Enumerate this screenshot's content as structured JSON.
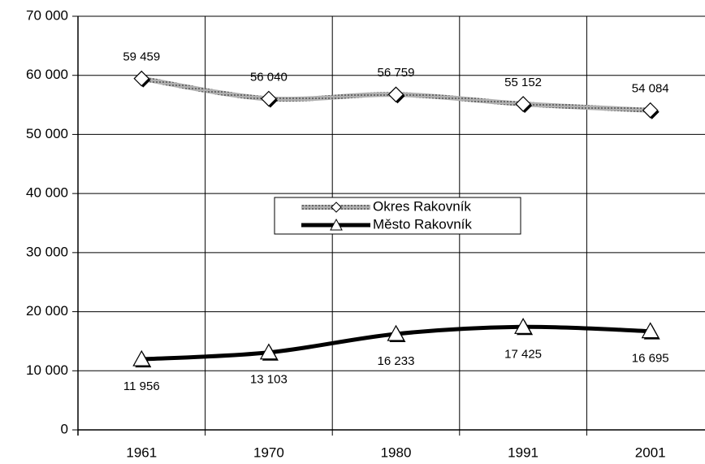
{
  "chart_data": {
    "type": "line",
    "categories": [
      "1961",
      "1970",
      "1980",
      "1991",
      "2001"
    ],
    "series": [
      {
        "name": "Okres Rakovník",
        "color": "#9a9a9a",
        "marker": "diamond",
        "values": [
          59459,
          56040,
          56759,
          55152,
          54084
        ],
        "value_labels": [
          "59 459",
          "56 040",
          "56 759",
          "55 152",
          "54 084"
        ]
      },
      {
        "name": "Město Rakovník",
        "color": "#000000",
        "marker": "triangle",
        "values": [
          11956,
          13103,
          16233,
          17425,
          16695
        ],
        "value_labels": [
          "11 956",
          "13 103",
          "16 233",
          "17 425",
          "16 695"
        ]
      }
    ],
    "ylim": [
      0,
      70000
    ],
    "yticks": [
      0,
      {
        "value": 10000,
        "label": "10 000"
      },
      {
        "value": 20000,
        "label": "20 000"
      },
      {
        "value": 30000,
        "label": "30 000"
      },
      {
        "value": 40000,
        "label": "40 000"
      },
      {
        "value": 50000,
        "label": "50 000"
      },
      {
        "value": 60000,
        "label": "60 000"
      },
      {
        "value": 70000,
        "label": "70 000"
      }
    ],
    "grid": true,
    "legend": "center"
  }
}
